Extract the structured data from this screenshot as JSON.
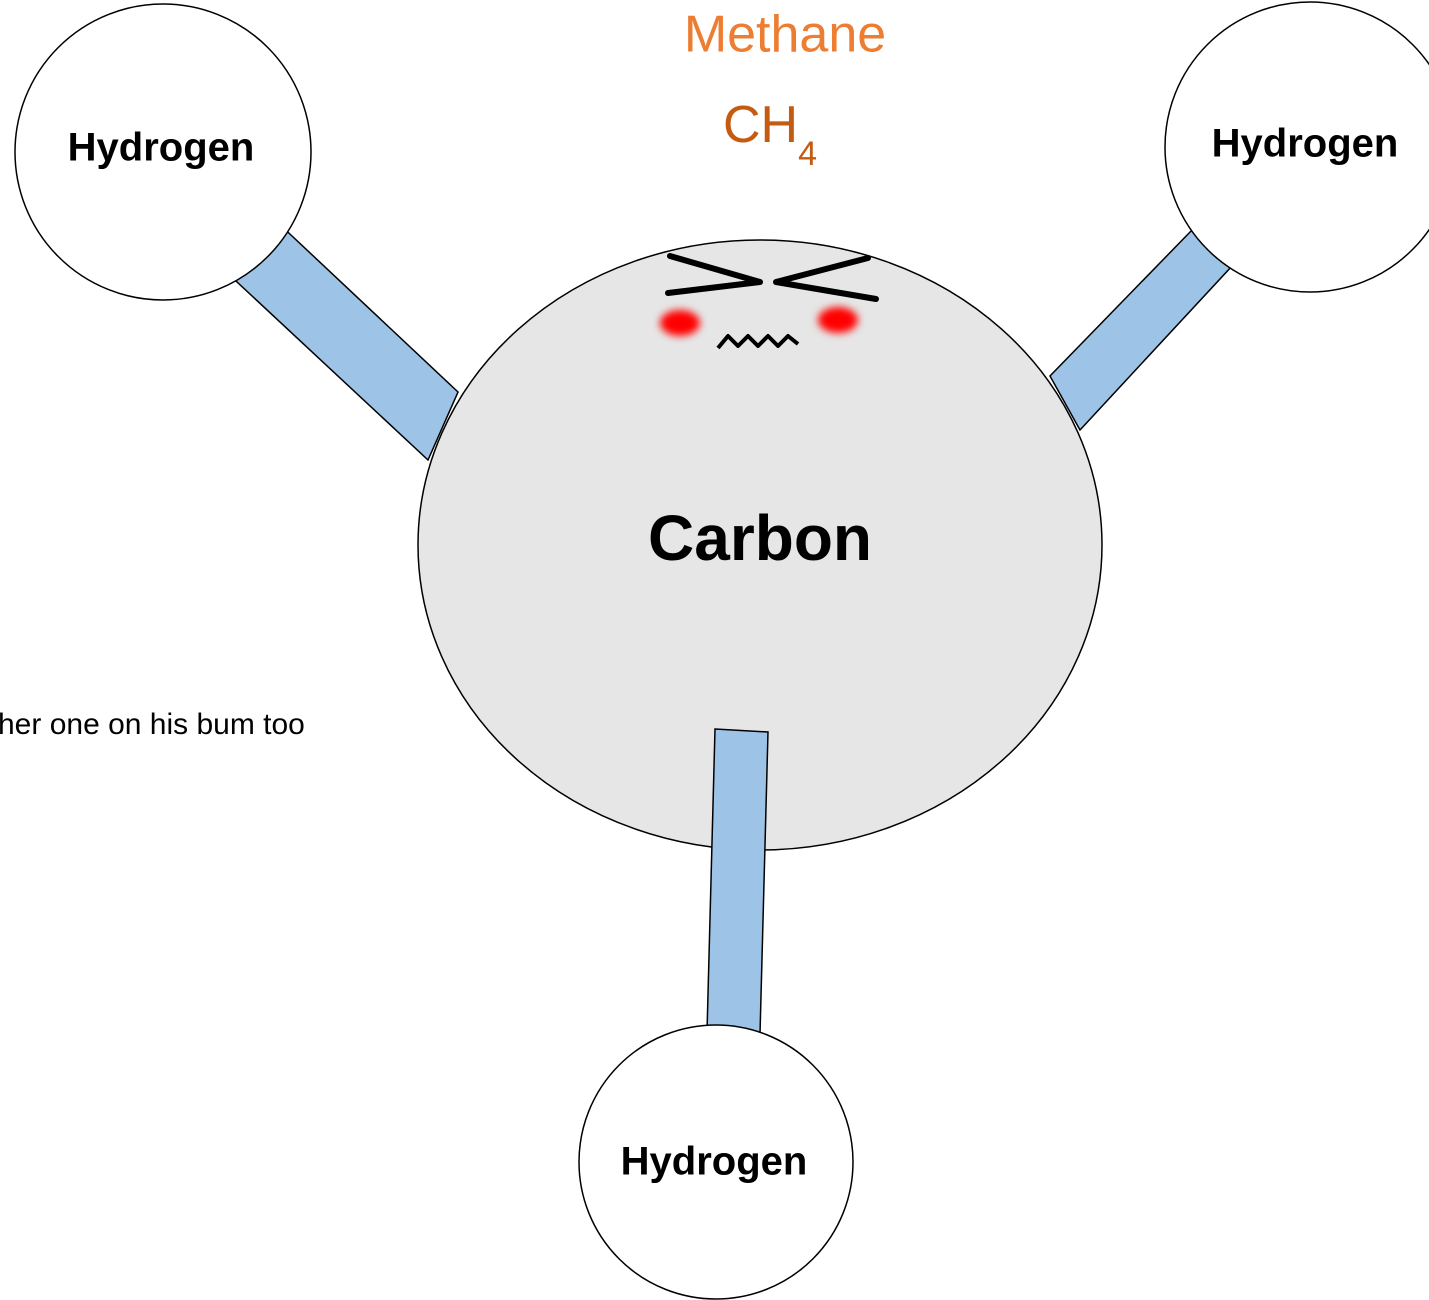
{
  "title": {
    "name": "Methane",
    "formula": "CH",
    "subscript": "4"
  },
  "nodes": [
    {
      "label": "Carbon"
    },
    {
      "label": "Hydrogen"
    },
    {
      "label": "Hydrogen"
    },
    {
      "label": "Hydrogen"
    }
  ],
  "note": "her one on his bum too"
}
